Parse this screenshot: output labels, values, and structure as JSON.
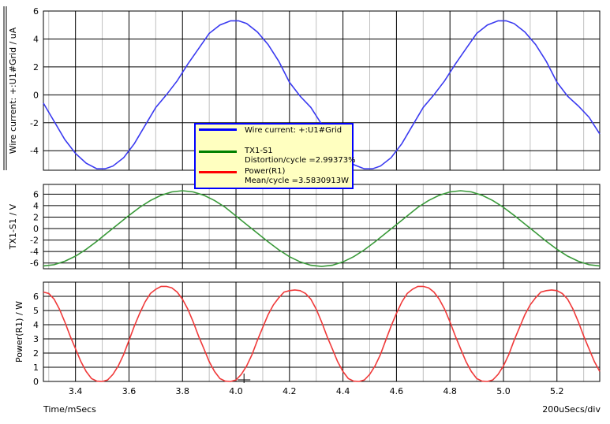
{
  "colors": {
    "wire_current": "#3a3af0",
    "tx1_s1": "#3a9a3a",
    "power_r1": "#f03a3a",
    "legend_bg": "#ffffc0",
    "legend_border": "#0000ff"
  },
  "x_axis": {
    "label": "Time/mSecs",
    "scale_label": "200uSecs/div",
    "range": [
      3.28,
      5.36
    ],
    "ticks": [
      "3.4",
      "3.6",
      "3.8",
      "4.0",
      "4.2",
      "4.4",
      "4.6",
      "4.8",
      "5.0",
      "5.2"
    ]
  },
  "legend": {
    "items": [
      {
        "line1": "Wire current: +:U1#Grid",
        "line2": ""
      },
      {
        "line1": "TX1-S1",
        "line2": "Distortion/cycle =2.99373%"
      },
      {
        "line1": "Power(R1)",
        "line2": "Mean/cycle =3.5830913W"
      }
    ]
  },
  "chart_data": [
    {
      "type": "line",
      "ylabel": "Wire current: +:U1#Grid / uA",
      "ylim": [
        -5.4,
        6.0
      ],
      "yticks": [
        6,
        4,
        2,
        0,
        -2,
        -4
      ],
      "grid": true,
      "series": [
        {
          "name": "Wire current: +:U1#Grid",
          "x": [
            3.28,
            3.32,
            3.36,
            3.4,
            3.44,
            3.48,
            3.51,
            3.54,
            3.58,
            3.62,
            3.66,
            3.7,
            3.74,
            3.78,
            3.82,
            3.86,
            3.9,
            3.94,
            3.98,
            4.01,
            4.04,
            4.08,
            4.12,
            4.16,
            4.2,
            4.24,
            4.28,
            4.32,
            4.36,
            4.4,
            4.44,
            4.48,
            4.51,
            4.54,
            4.58,
            4.62,
            4.66,
            4.7,
            4.74,
            4.78,
            4.82,
            4.86,
            4.9,
            4.94,
            4.98,
            5.01,
            5.04,
            5.08,
            5.12,
            5.16,
            5.2,
            5.24,
            5.28,
            5.32,
            5.36
          ],
          "y": [
            -0.6,
            -1.9,
            -3.2,
            -4.2,
            -4.9,
            -5.3,
            -5.3,
            -5.1,
            -4.5,
            -3.5,
            -2.2,
            -0.9,
            0.0,
            1.0,
            2.2,
            3.3,
            4.4,
            5.0,
            5.3,
            5.3,
            5.1,
            4.5,
            3.6,
            2.4,
            0.9,
            -0.1,
            -0.9,
            -2.1,
            -3.3,
            -4.3,
            -5.0,
            -5.3,
            -5.3,
            -5.1,
            -4.5,
            -3.5,
            -2.2,
            -0.9,
            0.0,
            1.0,
            2.2,
            3.3,
            4.4,
            5.0,
            5.3,
            5.3,
            5.1,
            4.5,
            3.6,
            2.4,
            0.9,
            -0.1,
            -0.8,
            -1.6,
            -2.8
          ]
        }
      ]
    },
    {
      "type": "line",
      "ylabel": "TX1-S1 / V",
      "ylim": [
        -7,
        7.7
      ],
      "yticks": [
        6,
        4,
        2,
        0,
        -2,
        -4,
        -6
      ],
      "grid": true,
      "series": [
        {
          "name": "TX1-S1",
          "x": [
            3.28,
            3.32,
            3.36,
            3.4,
            3.44,
            3.48,
            3.52,
            3.56,
            3.6,
            3.64,
            3.68,
            3.72,
            3.76,
            3.8,
            3.84,
            3.88,
            3.92,
            3.96,
            4.0,
            4.04,
            4.08,
            4.12,
            4.16,
            4.2,
            4.24,
            4.28,
            4.32,
            4.36,
            4.4,
            4.44,
            4.48,
            4.52,
            4.56,
            4.6,
            4.64,
            4.68,
            4.72,
            4.76,
            4.8,
            4.84,
            4.88,
            4.92,
            4.96,
            5.0,
            5.04,
            5.08,
            5.12,
            5.16,
            5.2,
            5.24,
            5.28,
            5.32,
            5.36
          ],
          "y": [
            -6.5,
            -6.3,
            -5.7,
            -4.8,
            -3.6,
            -2.2,
            -0.7,
            0.8,
            2.3,
            3.7,
            4.9,
            5.8,
            6.4,
            6.6,
            6.4,
            5.8,
            4.9,
            3.7,
            2.2,
            0.7,
            -0.8,
            -2.3,
            -3.7,
            -4.9,
            -5.8,
            -6.4,
            -6.6,
            -6.4,
            -5.8,
            -4.9,
            -3.7,
            -2.3,
            -0.8,
            0.7,
            2.2,
            3.7,
            4.9,
            5.8,
            6.4,
            6.6,
            6.4,
            5.8,
            4.9,
            3.7,
            2.3,
            0.8,
            -0.7,
            -2.2,
            -3.6,
            -4.8,
            -5.7,
            -6.3,
            -6.5
          ]
        }
      ]
    },
    {
      "type": "line",
      "ylabel": "Power(R1) / W",
      "ylim": [
        0,
        7.0
      ],
      "yticks": [
        6,
        5,
        4,
        3,
        2,
        1,
        0
      ],
      "grid": true,
      "series": [
        {
          "name": "Power(R1)",
          "x": [
            3.28,
            3.3,
            3.32,
            3.34,
            3.36,
            3.38,
            3.4,
            3.42,
            3.44,
            3.46,
            3.48,
            3.5,
            3.52,
            3.54,
            3.56,
            3.58,
            3.6,
            3.62,
            3.64,
            3.66,
            3.68,
            3.7,
            3.72,
            3.74,
            3.76,
            3.78,
            3.8,
            3.82,
            3.84,
            3.86,
            3.88,
            3.9,
            3.92,
            3.94,
            3.96,
            3.98,
            4.0,
            4.02,
            4.04,
            4.06,
            4.08,
            4.1,
            4.12,
            4.14,
            4.16,
            4.18,
            4.2,
            4.22,
            4.24,
            4.26,
            4.28,
            4.3,
            4.32,
            4.34,
            4.36,
            4.38,
            4.4,
            4.42,
            4.44,
            4.46,
            4.48,
            4.5,
            4.52,
            4.54,
            4.56,
            4.58,
            4.6,
            4.62,
            4.64,
            4.66,
            4.68,
            4.7,
            4.72,
            4.74,
            4.76,
            4.78,
            4.8,
            4.82,
            4.84,
            4.86,
            4.88,
            4.9,
            4.92,
            4.94,
            4.96,
            4.98,
            5.0,
            5.02,
            5.04,
            5.06,
            5.08,
            5.1,
            5.12,
            5.14,
            5.16,
            5.18,
            5.2,
            5.22,
            5.24,
            5.26,
            5.28,
            5.3,
            5.32,
            5.34,
            5.36
          ],
          "y": [
            6.3,
            6.2,
            5.8,
            5.1,
            4.2,
            3.2,
            2.3,
            1.4,
            0.7,
            0.2,
            0.02,
            0.0,
            0.1,
            0.5,
            1.1,
            1.9,
            2.9,
            3.9,
            4.8,
            5.6,
            6.2,
            6.5,
            6.7,
            6.7,
            6.6,
            6.3,
            5.8,
            5.1,
            4.2,
            3.2,
            2.3,
            1.4,
            0.7,
            0.2,
            0.02,
            0.0,
            0.1,
            0.5,
            1.1,
            1.9,
            2.9,
            3.8,
            4.7,
            5.4,
            5.9,
            6.3,
            6.4,
            6.45,
            6.4,
            6.2,
            5.8,
            5.1,
            4.2,
            3.2,
            2.3,
            1.4,
            0.7,
            0.2,
            0.02,
            0.0,
            0.1,
            0.5,
            1.1,
            1.9,
            2.9,
            3.9,
            4.8,
            5.6,
            6.2,
            6.5,
            6.7,
            6.7,
            6.6,
            6.3,
            5.8,
            5.1,
            4.2,
            3.2,
            2.3,
            1.4,
            0.7,
            0.2,
            0.02,
            0.0,
            0.1,
            0.5,
            1.1,
            1.9,
            2.9,
            3.8,
            4.7,
            5.4,
            5.9,
            6.3,
            6.4,
            6.45,
            6.4,
            6.2,
            5.8,
            5.1,
            4.2,
            3.2,
            2.3,
            1.4,
            0.7
          ]
        }
      ]
    }
  ]
}
